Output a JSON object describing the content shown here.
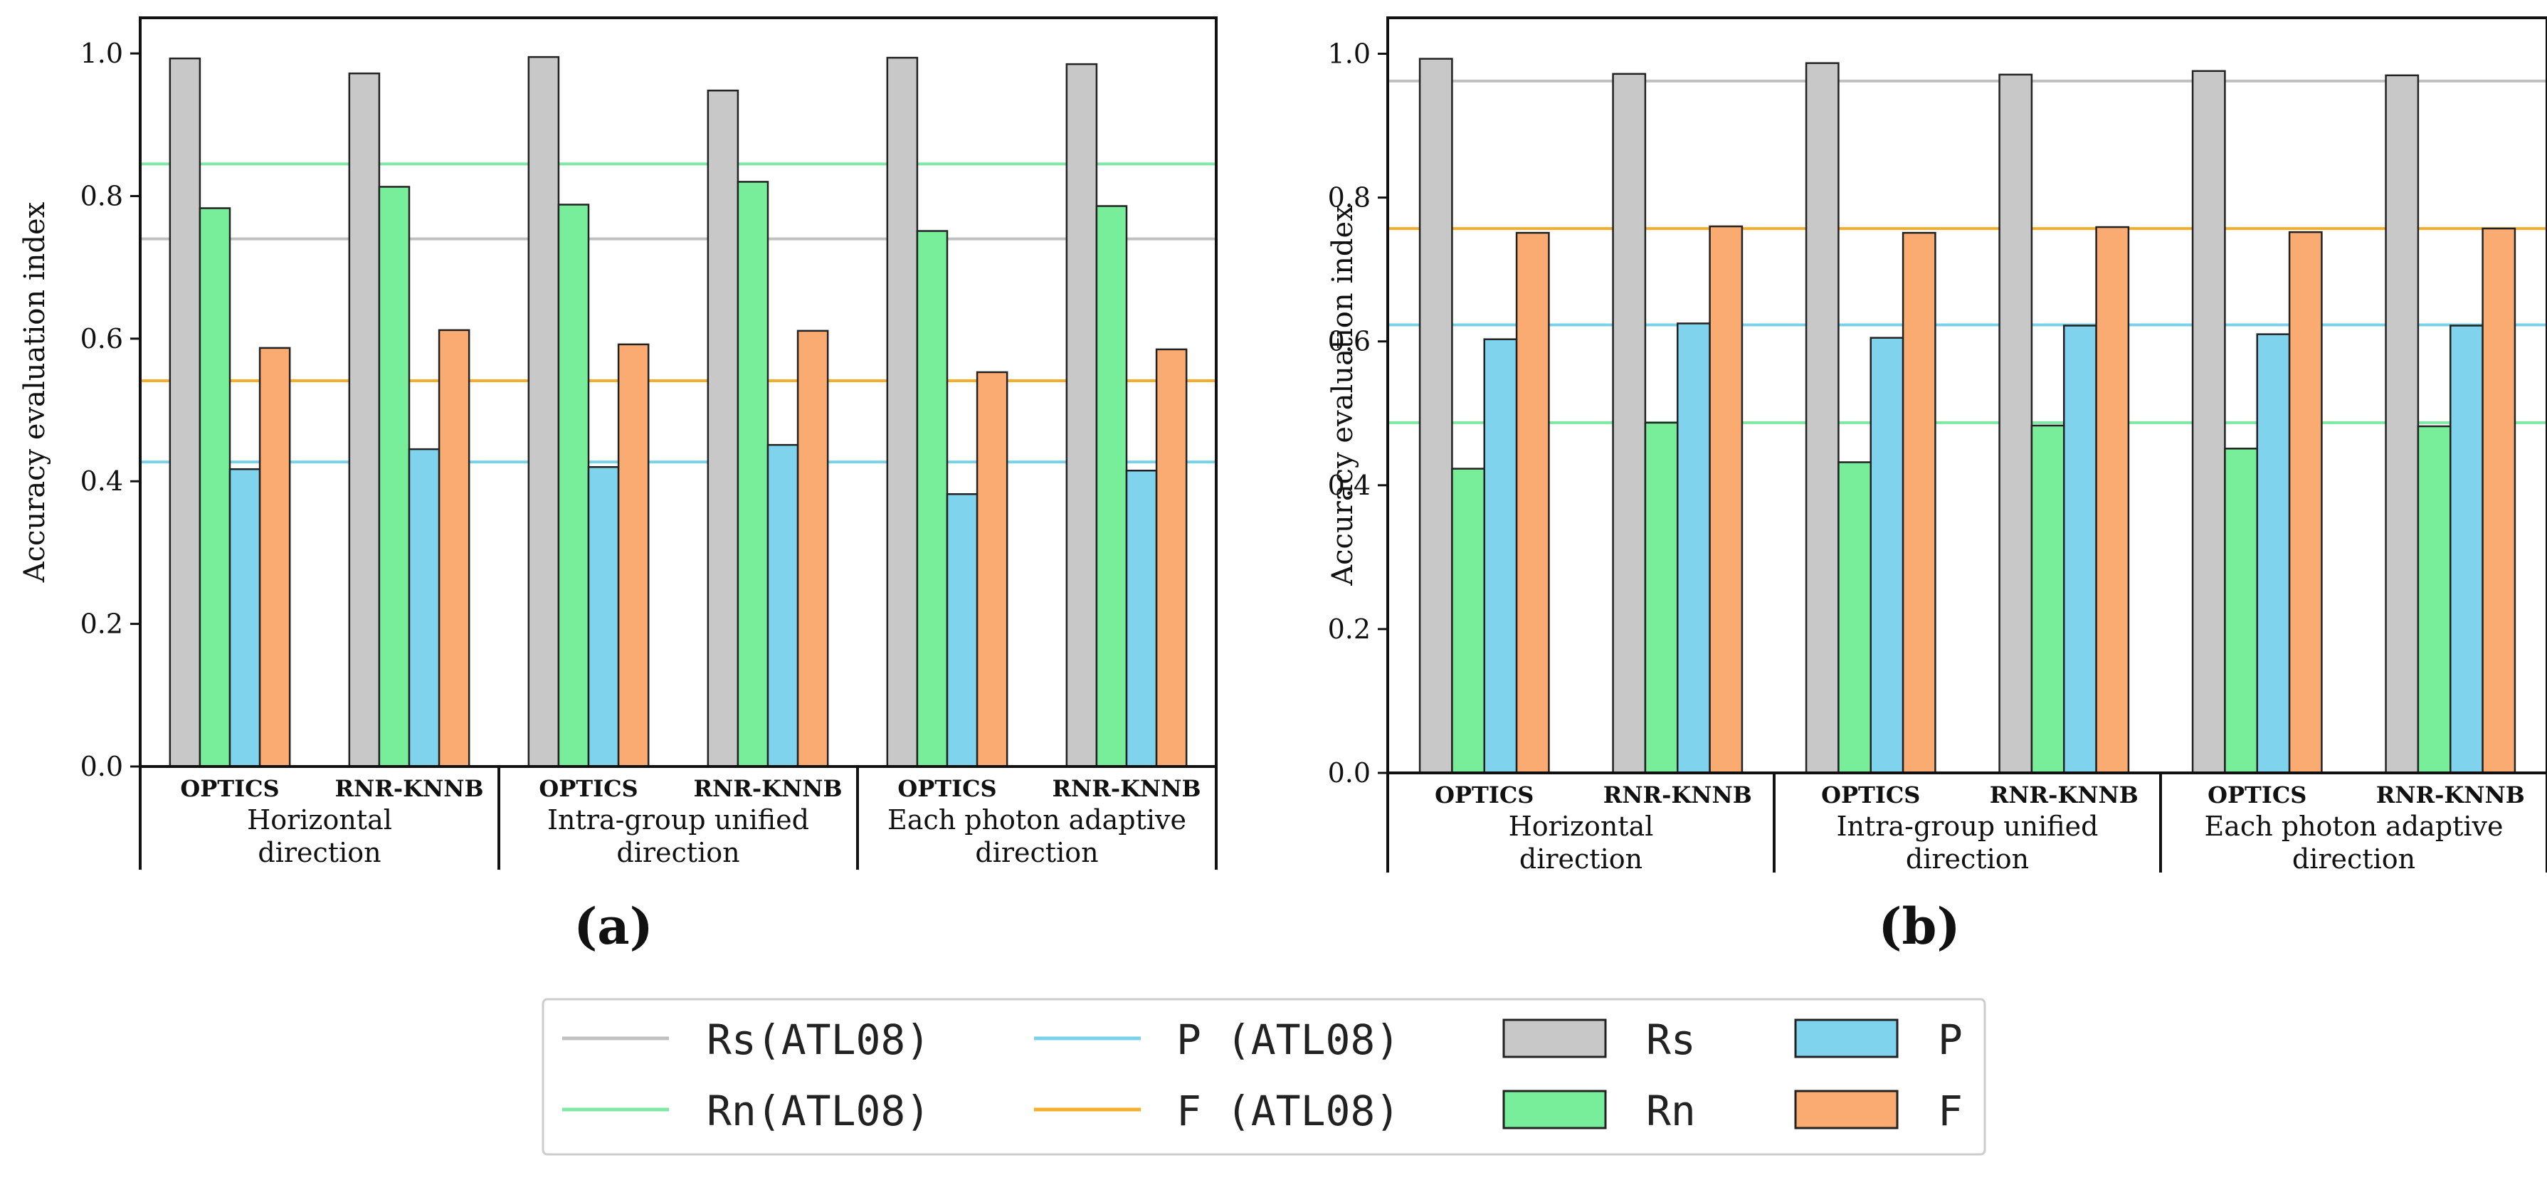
{
  "chart_data": [
    {
      "type": "bar",
      "panel_label": "(a)",
      "ylabel": "Accuracy evaluation index",
      "ylim": [
        0,
        1.05
      ],
      "yticks": [
        "0.0",
        "0.2",
        "0.4",
        "0.6",
        "0.8",
        "1.0"
      ],
      "groups": [
        {
          "label_line1": "Horizontal",
          "label_line2": "direction",
          "algorithms": [
            "OPTICS",
            "RNR-KNNB"
          ]
        },
        {
          "label_line1": "Intra-group unified",
          "label_line2": "direction",
          "algorithms": [
            "OPTICS",
            "RNR-KNNB"
          ]
        },
        {
          "label_line1": "Each photon adaptive",
          "label_line2": "direction",
          "algorithms": [
            "OPTICS",
            "RNR-KNNB"
          ]
        }
      ],
      "series": [
        {
          "name": "Rs",
          "values": [
            0.993,
            0.972,
            0.995,
            0.948,
            0.994,
            0.985
          ]
        },
        {
          "name": "Rn",
          "values": [
            0.783,
            0.813,
            0.788,
            0.82,
            0.751,
            0.786
          ]
        },
        {
          "name": "P",
          "values": [
            0.417,
            0.445,
            0.42,
            0.451,
            0.382,
            0.415
          ]
        },
        {
          "name": "F",
          "values": [
            0.587,
            0.612,
            0.592,
            0.611,
            0.553,
            0.585
          ]
        }
      ],
      "reference_lines": [
        {
          "name": "Rs(ATL08)",
          "value": 0.74
        },
        {
          "name": "Rn(ATL08)",
          "value": 0.845
        },
        {
          "name": "P (ATL08)",
          "value": 0.427
        },
        {
          "name": "F (ATL08)",
          "value": 0.541
        }
      ]
    },
    {
      "type": "bar",
      "panel_label": "(b)",
      "ylabel": "Accuracy evaluation index",
      "ylim": [
        0,
        1.05
      ],
      "yticks": [
        "0.0",
        "0.2",
        "0.4",
        "0.6",
        "0.8",
        "1.0"
      ],
      "groups": [
        {
          "label_line1": "Horizontal",
          "label_line2": "direction",
          "algorithms": [
            "OPTICS",
            "RNR-KNNB"
          ]
        },
        {
          "label_line1": "Intra-group unified",
          "label_line2": "direction",
          "algorithms": [
            "OPTICS",
            "RNR-KNNB"
          ]
        },
        {
          "label_line1": "Each photon adaptive",
          "label_line2": "direction",
          "algorithms": [
            "OPTICS",
            "RNR-KNNB"
          ]
        }
      ],
      "series": [
        {
          "name": "Rs",
          "values": [
            0.993,
            0.972,
            0.987,
            0.971,
            0.976,
            0.97
          ]
        },
        {
          "name": "Rn",
          "values": [
            0.423,
            0.487,
            0.432,
            0.483,
            0.451,
            0.482
          ]
        },
        {
          "name": "P",
          "values": [
            0.603,
            0.625,
            0.605,
            0.622,
            0.61,
            0.622
          ]
        },
        {
          "name": "F",
          "values": [
            0.751,
            0.76,
            0.751,
            0.759,
            0.752,
            0.757
          ]
        }
      ],
      "reference_lines": [
        {
          "name": "Rs(ATL08)",
          "value": 0.962
        },
        {
          "name": "Rn(ATL08)",
          "value": 0.487
        },
        {
          "name": "P (ATL08)",
          "value": 0.623
        },
        {
          "name": "F (ATL08)",
          "value": 0.757
        }
      ]
    }
  ],
  "colors": {
    "Rs": "#c8c8c8",
    "Rn": "#78ee9a",
    "P": "#7fd3ec",
    "F": "#f9ab72",
    "Rs_line": "#c0c0c0",
    "Rn_line": "#7ee8a4",
    "P_line": "#79d2ea",
    "F_line": "#f5ad2c"
  },
  "legend": {
    "lines": [
      {
        "key": "Rs_line",
        "label": "Rs(ATL08)"
      },
      {
        "key": "P_line",
        "label": "P (ATL08)"
      },
      {
        "key": "Rn_line",
        "label": "Rn(ATL08)"
      },
      {
        "key": "F_line",
        "label": "F (ATL08)"
      }
    ],
    "patches": [
      {
        "key": "Rs",
        "label": "Rs"
      },
      {
        "key": "P",
        "label": "P"
      },
      {
        "key": "Rn",
        "label": "Rn"
      },
      {
        "key": "F",
        "label": "F"
      }
    ]
  }
}
